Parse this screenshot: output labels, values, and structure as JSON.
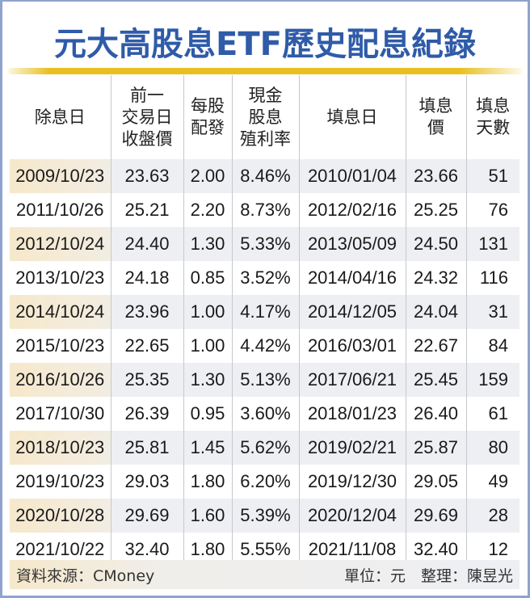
{
  "title": "元大高股息ETF歷史配息紀錄",
  "colors": {
    "title": "#2f5ba8",
    "accent_bar": "#e8c020",
    "frame": "#8fa3cc",
    "row_stripe": "#eeeff3",
    "date_highlight": "#f6e8cb"
  },
  "table": {
    "headers": [
      [
        "除息日"
      ],
      [
        "前一",
        "交易日",
        "收盤價"
      ],
      [
        "每股",
        "配發"
      ],
      [
        "現金",
        "股息",
        "殖利率"
      ],
      [
        "填息日"
      ],
      [
        "填息",
        "價"
      ],
      [
        "填息",
        "天數"
      ]
    ],
    "rows": [
      [
        "2009/10/23",
        "23.63",
        "2.00",
        "8.46%",
        "2010/01/04",
        "23.66",
        "51"
      ],
      [
        "2011/10/26",
        "25.21",
        "2.20",
        "8.73%",
        "2012/02/16",
        "25.25",
        "76"
      ],
      [
        "2012/10/24",
        "24.40",
        "1.30",
        "5.33%",
        "2013/05/09",
        "24.50",
        "131"
      ],
      [
        "2013/10/23",
        "24.18",
        "0.85",
        "3.52%",
        "2014/04/16",
        "24.32",
        "116"
      ],
      [
        "2014/10/24",
        "23.96",
        "1.00",
        "4.17%",
        "2014/12/05",
        "24.04",
        "31"
      ],
      [
        "2015/10/23",
        "22.65",
        "1.00",
        "4.42%",
        "2016/03/01",
        "22.67",
        "84"
      ],
      [
        "2016/10/26",
        "25.35",
        "1.30",
        "5.13%",
        "2017/06/21",
        "25.45",
        "159"
      ],
      [
        "2017/10/30",
        "26.39",
        "0.95",
        "3.60%",
        "2018/01/23",
        "26.40",
        "61"
      ],
      [
        "2018/10/23",
        "25.81",
        "1.45",
        "5.62%",
        "2019/02/21",
        "25.87",
        "80"
      ],
      [
        "2019/10/23",
        "29.03",
        "1.80",
        "6.20%",
        "2019/12/30",
        "29.05",
        "49"
      ],
      [
        "2020/10/28",
        "29.69",
        "1.60",
        "5.39%",
        "2020/12/04",
        "29.69",
        "28"
      ],
      [
        "2021/10/22",
        "32.40",
        "1.80",
        "5.55%",
        "2021/11/08",
        "32.40",
        "12"
      ]
    ]
  },
  "footer": {
    "source": "資料來源：CMoney",
    "note": "單位：元　整理：陳昱光"
  },
  "chart_data": {
    "type": "table",
    "title": "元大高股息ETF歷史配息紀錄",
    "columns": [
      "除息日",
      "前一交易日收盤價",
      "每股配發",
      "現金股息殖利率",
      "填息日",
      "填息價",
      "填息天數"
    ],
    "rows": [
      [
        "2009/10/23",
        23.63,
        2.0,
        "8.46%",
        "2010/01/04",
        23.66,
        51
      ],
      [
        "2011/10/26",
        25.21,
        2.2,
        "8.73%",
        "2012/02/16",
        25.25,
        76
      ],
      [
        "2012/10/24",
        24.4,
        1.3,
        "5.33%",
        "2013/05/09",
        24.5,
        131
      ],
      [
        "2013/10/23",
        24.18,
        0.85,
        "3.52%",
        "2014/04/16",
        24.32,
        116
      ],
      [
        "2014/10/24",
        23.96,
        1.0,
        "4.17%",
        "2014/12/05",
        24.04,
        31
      ],
      [
        "2015/10/23",
        22.65,
        1.0,
        "4.42%",
        "2016/03/01",
        22.67,
        84
      ],
      [
        "2016/10/26",
        25.35,
        1.3,
        "5.13%",
        "2017/06/21",
        25.45,
        159
      ],
      [
        "2017/10/30",
        26.39,
        0.95,
        "3.60%",
        "2018/01/23",
        26.4,
        61
      ],
      [
        "2018/10/23",
        25.81,
        1.45,
        "5.62%",
        "2019/02/21",
        25.87,
        80
      ],
      [
        "2019/10/23",
        29.03,
        1.8,
        "6.20%",
        "2019/12/30",
        29.05,
        49
      ],
      [
        "2020/10/28",
        29.69,
        1.6,
        "5.39%",
        "2020/12/04",
        29.69,
        28
      ],
      [
        "2021/10/22",
        32.4,
        1.8,
        "5.55%",
        "2021/11/08",
        32.4,
        12
      ]
    ]
  }
}
